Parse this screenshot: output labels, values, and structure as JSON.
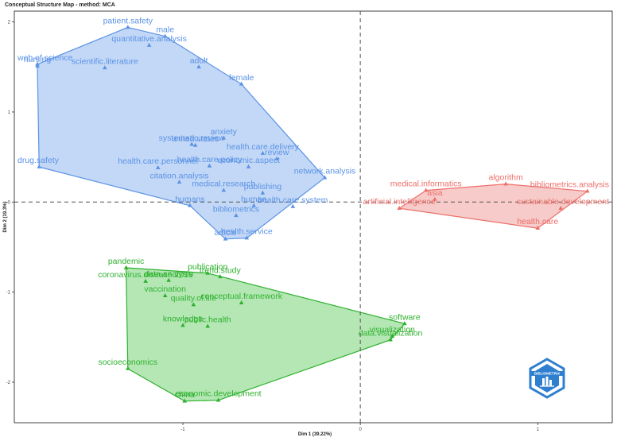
{
  "chart_data": {
    "type": "scatter",
    "title": "Conceptual Structure Map - method: MCA",
    "xlabel": "Dim 1 (39.22%)",
    "ylabel": "Dim 2 (19.3%)",
    "xlim": [
      -1.95,
      1.42
    ],
    "ylim": [
      -2.45,
      2.12
    ],
    "x_ticks": [
      -1,
      0,
      1
    ],
    "y_ticks": [
      -2,
      -1,
      0,
      1,
      2
    ],
    "grid": false,
    "reference_lines": {
      "x": 0,
      "y": 0
    },
    "logo_text": "BIBLIOMETRIX",
    "clusters": [
      {
        "color": "#5b93e6",
        "fill": "#b9d1f5",
        "hull": [
          [
            -1.31,
            1.94
          ],
          [
            -1.1,
            1.84
          ],
          [
            -0.67,
            1.31
          ],
          [
            -0.2,
            0.27
          ],
          [
            -0.64,
            -0.4
          ],
          [
            -0.76,
            -0.41
          ],
          [
            -0.96,
            -0.04
          ],
          [
            -1.81,
            0.39
          ],
          [
            -1.82,
            1.53
          ]
        ],
        "points": [
          {
            "label": "patient.safety",
            "x": -1.31,
            "y": 1.94
          },
          {
            "label": "male",
            "x": -1.1,
            "y": 1.84
          },
          {
            "label": "quantitative.analysis",
            "x": -1.19,
            "y": 1.74
          },
          {
            "label": "web.of.science",
            "x": -1.82,
            "y": 1.53
          },
          {
            "label": "nursing",
            "x": -1.82,
            "y": 1.51
          },
          {
            "label": "scientific.literature",
            "x": -1.44,
            "y": 1.49
          },
          {
            "label": "adult",
            "x": -0.91,
            "y": 1.5
          },
          {
            "label": "female",
            "x": -0.67,
            "y": 1.31
          },
          {
            "label": "anxiety",
            "x": -0.77,
            "y": 0.71
          },
          {
            "label": "systematic.review",
            "x": -0.95,
            "y": 0.64
          },
          {
            "label": "united.states",
            "x": -0.93,
            "y": 0.63
          },
          {
            "label": "health.care.delivery",
            "x": -0.55,
            "y": 0.54
          },
          {
            "label": "review",
            "x": -0.47,
            "y": 0.48
          },
          {
            "label": "drug.safety",
            "x": -1.81,
            "y": 0.39
          },
          {
            "label": "health.care.policy",
            "x": -0.85,
            "y": 0.4
          },
          {
            "label": "economic.aspect",
            "x": -0.63,
            "y": 0.39
          },
          {
            "label": "health.care.personnel",
            "x": -1.14,
            "y": 0.38
          },
          {
            "label": "network.analysis",
            "x": -0.2,
            "y": 0.27
          },
          {
            "label": "citation.analysis",
            "x": -1.02,
            "y": 0.22
          },
          {
            "label": "publishing",
            "x": -0.55,
            "y": 0.1
          },
          {
            "label": "medical.research",
            "x": -0.77,
            "y": 0.13
          },
          {
            "label": "human",
            "x": -0.6,
            "y": -0.04
          },
          {
            "label": "health.care.system",
            "x": -0.38,
            "y": -0.05
          },
          {
            "label": "humans",
            "x": -0.96,
            "y": -0.04
          },
          {
            "label": "bibliometrics",
            "x": -0.7,
            "y": -0.15
          },
          {
            "label": "health.service",
            "x": -0.64,
            "y": -0.4
          },
          {
            "label": "article",
            "x": -0.76,
            "y": -0.41
          }
        ]
      },
      {
        "color": "#ec6f6a",
        "fill": "#f5c2bf",
        "hull": [
          [
            0.37,
            0.13
          ],
          [
            0.82,
            0.2
          ],
          [
            1.28,
            0.12
          ],
          [
            1.0,
            -0.29
          ],
          [
            0.22,
            -0.07
          ]
        ],
        "points": [
          {
            "label": "medical.informatics",
            "x": 0.37,
            "y": 0.13
          },
          {
            "label": "algorithm",
            "x": 0.82,
            "y": 0.2
          },
          {
            "label": "bibliometrics.analysis",
            "x": 1.28,
            "y": 0.12
          },
          {
            "label": "asia",
            "x": 0.42,
            "y": 0.03
          },
          {
            "label": "artificial.intelligence",
            "x": 0.22,
            "y": -0.07
          },
          {
            "label": "sustainable.development",
            "x": 1.13,
            "y": -0.07
          },
          {
            "label": "health.care",
            "x": 1.0,
            "y": -0.29
          }
        ]
      },
      {
        "color": "#2fb12f",
        "fill": "#a8e3a8",
        "hull": [
          [
            -1.32,
            -0.73
          ],
          [
            -0.86,
            -0.79
          ],
          [
            0.25,
            -1.35
          ],
          [
            0.17,
            -1.53
          ],
          [
            -0.8,
            -2.2
          ],
          [
            -0.99,
            -2.21
          ],
          [
            -1.31,
            -1.85
          ]
        ],
        "points": [
          {
            "label": "pandemic",
            "x": -1.32,
            "y": -0.73
          },
          {
            "label": "publication",
            "x": -0.86,
            "y": -0.79
          },
          {
            "label": "coronavirus.disease.2019",
            "x": -1.21,
            "y": -0.88
          },
          {
            "label": "data.analysis",
            "x": -1.08,
            "y": -0.87
          },
          {
            "label": "trend.study",
            "x": -0.79,
            "y": -0.83
          },
          {
            "label": "vaccination",
            "x": -1.1,
            "y": -1.04
          },
          {
            "label": "conceptual.framework",
            "x": -0.67,
            "y": -1.12
          },
          {
            "label": "quality.of.life",
            "x": -0.94,
            "y": -1.14
          },
          {
            "label": "knowledge",
            "x": -1.0,
            "y": -1.37
          },
          {
            "label": "public.health",
            "x": -0.86,
            "y": -1.38
          },
          {
            "label": "software",
            "x": 0.25,
            "y": -1.35
          },
          {
            "label": "visualization",
            "x": 0.18,
            "y": -1.49
          },
          {
            "label": "data.visualization",
            "x": 0.17,
            "y": -1.53
          },
          {
            "label": "socioeconomics",
            "x": -1.31,
            "y": -1.85
          },
          {
            "label": "economic.development",
            "x": -0.8,
            "y": -2.2
          },
          {
            "label": "china",
            "x": -0.99,
            "y": -2.21
          }
        ]
      }
    ]
  }
}
